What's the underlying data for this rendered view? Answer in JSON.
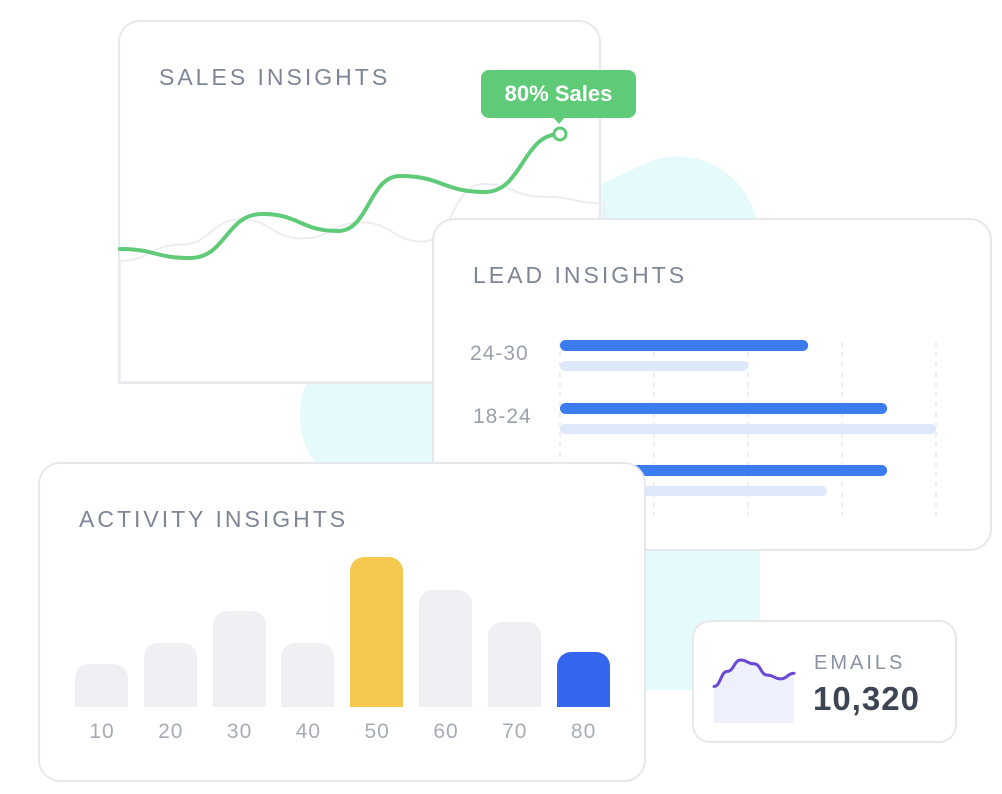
{
  "cards": {
    "sales": {
      "title": "SALES INSIGHTS",
      "tooltip": "80% Sales"
    },
    "lead": {
      "title": "LEAD INSIGHTS"
    },
    "activity": {
      "title": "ACTIVITY INSIGHTS"
    },
    "emails": {
      "label": "EMAILS",
      "value": "10,320"
    }
  },
  "colors": {
    "sales_line": "#5fcb78",
    "lead_primary": "#3b7cf0",
    "lead_secondary": "#dde8fb",
    "activity_default": "#f0f0f4",
    "activity_highlight": "#f3c94f",
    "activity_accent": "#3566ee",
    "email_line": "#6b47d6",
    "background_blob": "#e5fafb"
  },
  "chart_data": [
    {
      "type": "line",
      "title": "SALES INSIGHTS",
      "series": [
        {
          "values": [
            20,
            14,
            40,
            30,
            62,
            55,
            92
          ]
        },
        {
          "values": [
            12,
            22,
            38,
            26,
            36,
            24,
            60,
            52,
            48
          ]
        }
      ],
      "annotation": "80% Sales"
    },
    {
      "type": "bar",
      "orientation": "horizontal",
      "title": "LEAD INSIGHTS",
      "categories": [
        "24-30",
        "18-24",
        ""
      ],
      "series": [
        {
          "values": [
            66,
            87,
            87
          ]
        },
        {
          "values": [
            50,
            100,
            71
          ]
        }
      ],
      "grid": true
    },
    {
      "type": "bar",
      "title": "ACTIVITY INSIGHTS",
      "categories": [
        "10",
        "20",
        "30",
        "40",
        "50",
        "60",
        "70",
        "80"
      ],
      "values": [
        29,
        43,
        64,
        43,
        100,
        78,
        57,
        37
      ],
      "highlight": "50",
      "accent": "80"
    },
    {
      "type": "area",
      "title": "EMAILS",
      "values": [
        4,
        12,
        18,
        16,
        10,
        8,
        11
      ],
      "value_label": "10,320"
    }
  ]
}
